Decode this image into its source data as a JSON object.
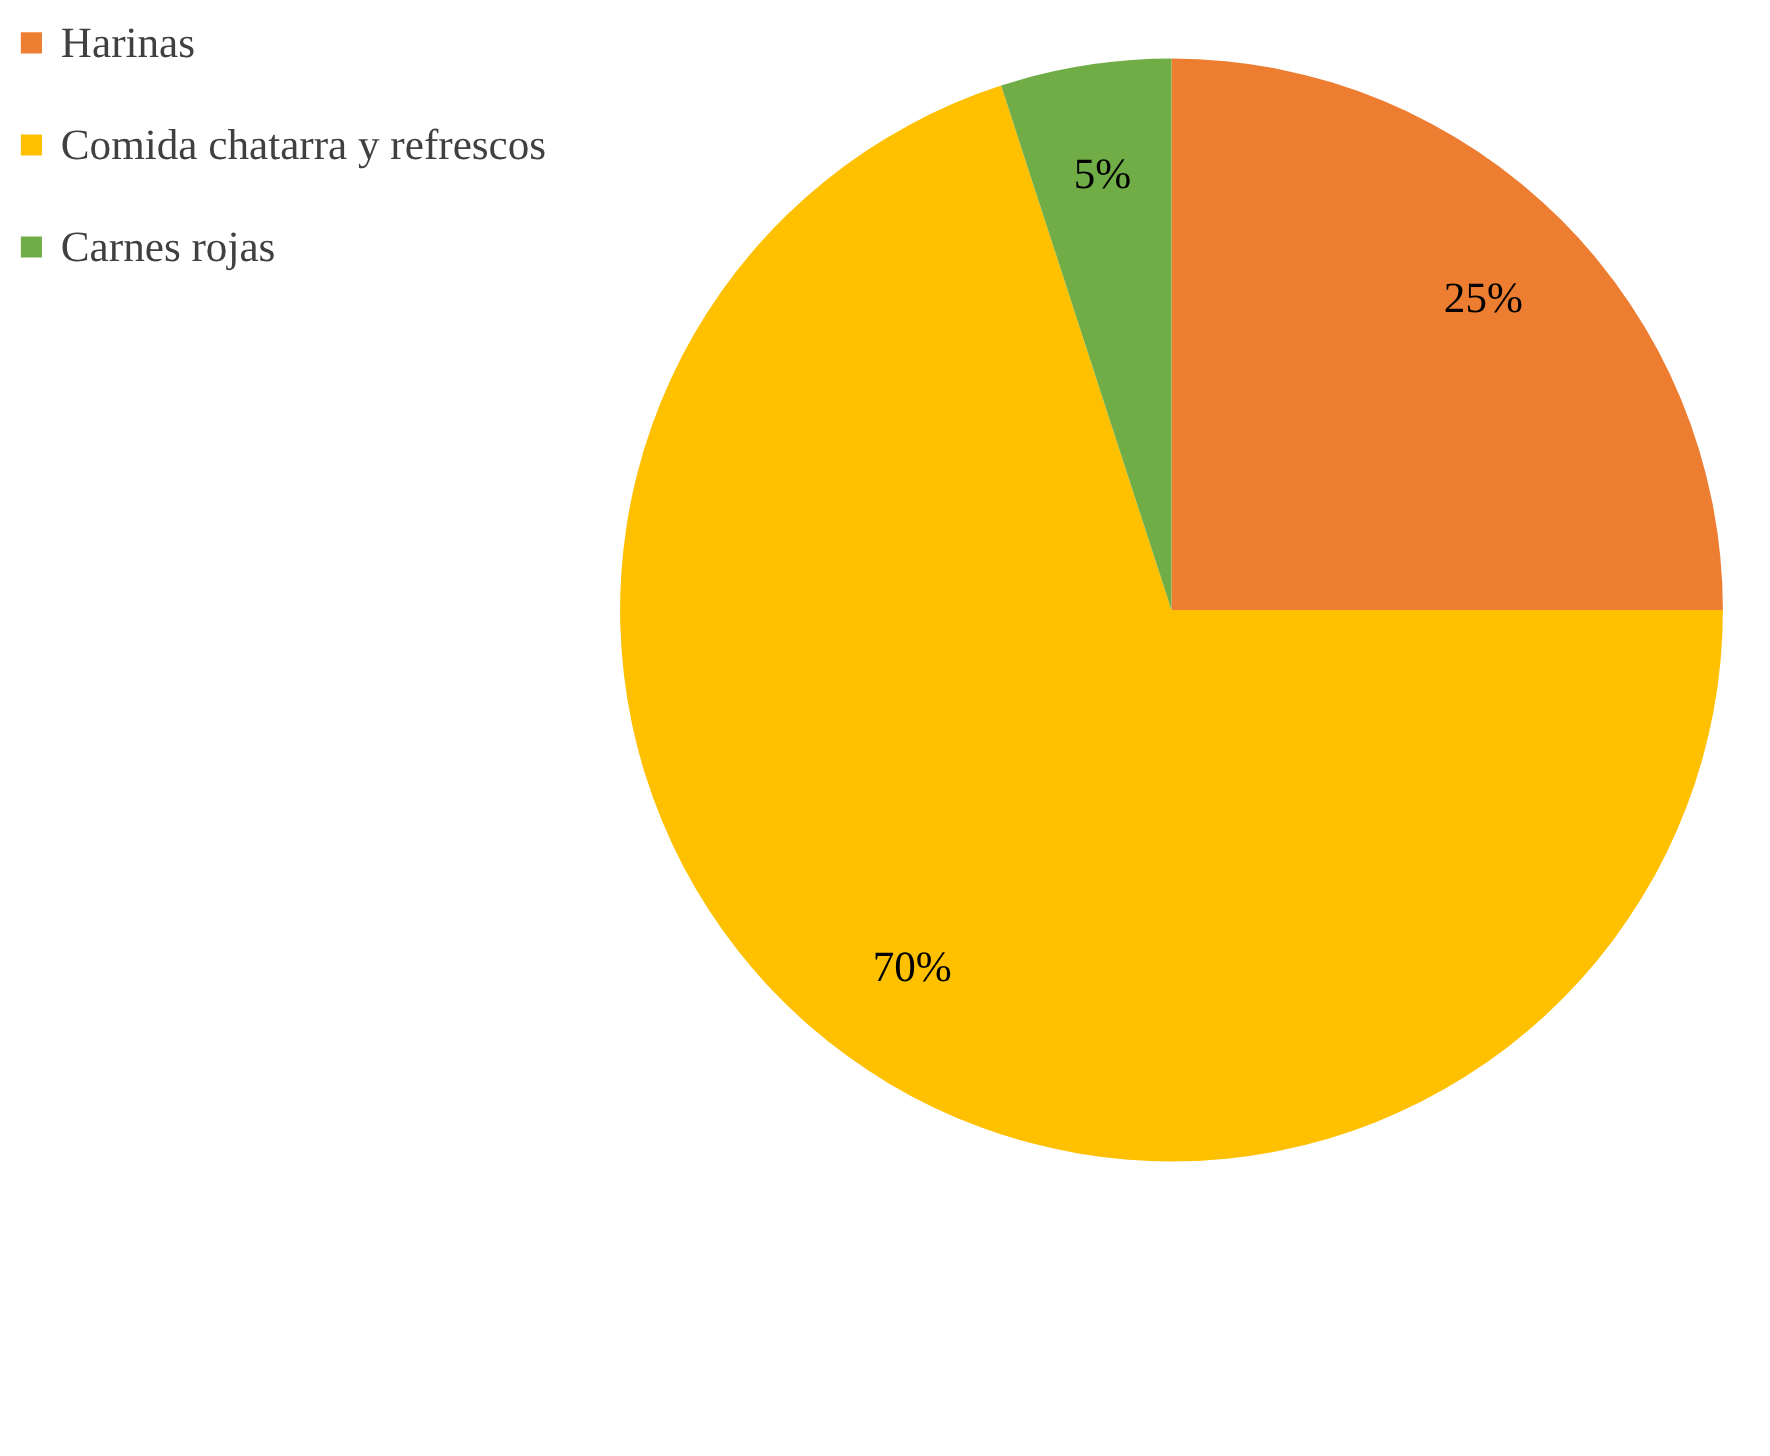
{
  "chart_data": {
    "type": "pie",
    "categories": [
      "Harinas",
      "Comida chatarra y refrescos",
      "Carnes rojas"
    ],
    "values": [
      25,
      70,
      5
    ],
    "colors": [
      "#ed7d31",
      "#ffc000",
      "#70ad47"
    ],
    "value_labels": [
      "25%",
      "70%",
      "5%"
    ],
    "legend": "left"
  }
}
